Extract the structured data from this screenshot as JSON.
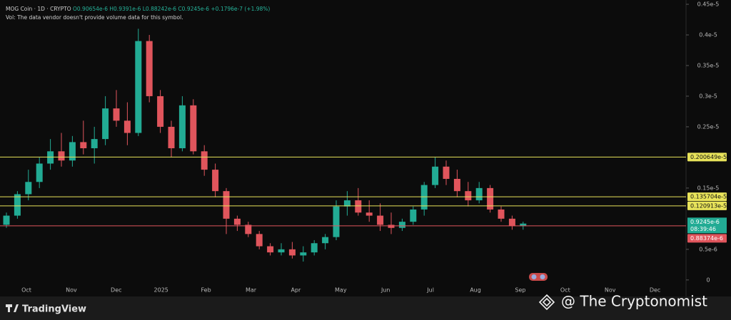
{
  "chart_data": {
    "type": "candlestick",
    "symbol": "MOG Coin · 1D · CRYPTO",
    "ohlc_text": "O0.90654e-6 H0.9391e-6 L0.88242e-6 C0.9245e-6 +0.1796e-7 (+1.98%)",
    "volume_note": "Vol: The data vendor doesn't provide volume data for this symbol.",
    "months": [
      "Oct",
      "Nov",
      "Dec",
      "2025",
      "Feb",
      "Mar",
      "Apr",
      "May",
      "Jun",
      "Jul",
      "Aug",
      "Sep",
      "Oct",
      "Nov",
      "Dec"
    ],
    "open": [
      9e-07,
      1.05e-06,
      1.4e-06,
      1.6e-06,
      1.9e-06,
      2.1e-06,
      1.95e-06,
      2.25e-06,
      2.15e-06,
      2.3e-06,
      2.8e-06,
      2.6e-06,
      2.4e-06,
      3.9e-06,
      3e-06,
      2.5e-06,
      2.15e-06,
      2.85e-06,
      2.1e-06,
      1.8e-06,
      1.45e-06,
      1e-06,
      9e-07,
      7.5e-07,
      5.5e-07,
      4.5e-07,
      5e-07,
      4e-07,
      4.5e-07,
      6e-07,
      7e-07,
      1.2e-06,
      1.3e-06,
      1.1e-06,
      1.05e-06,
      9e-07,
      8.5e-07,
      9.5e-07,
      1.15e-06,
      1.55e-06,
      1.85e-06,
      1.65e-06,
      1.45e-06,
      1.3e-06,
      1.5e-06,
      1.15e-06,
      1e-06,
      8.8e-07
    ],
    "high": [
      1.1e-06,
      1.45e-06,
      1.8e-06,
      2e-06,
      2.3e-06,
      2.4e-06,
      2.35e-06,
      2.6e-06,
      2.5e-06,
      3e-06,
      3.1e-06,
      2.9e-06,
      4.1e-06,
      4e-06,
      3.1e-06,
      2.6e-06,
      3e-06,
      2.95e-06,
      2.2e-06,
      1.9e-06,
      1.5e-06,
      1.05e-06,
      9.5e-07,
      8e-07,
      6e-07,
      6e-07,
      6.2e-07,
      5.5e-07,
      6.5e-07,
      7.5e-07,
      1.3e-06,
      1.45e-06,
      1.5e-06,
      1.3e-06,
      1.25e-06,
      1.1e-06,
      1e-06,
      1.2e-06,
      1.6e-06,
      2e-06,
      1.95e-06,
      1.8e-06,
      1.6e-06,
      1.6e-06,
      1.55e-06,
      1.2e-06,
      1.05e-06,
      9.5e-07
    ],
    "low": [
      8.5e-07,
      1e-06,
      1.3e-06,
      1.5e-06,
      1.8e-06,
      1.85e-06,
      1.85e-06,
      2.05e-06,
      1.9e-06,
      2.2e-06,
      2.5e-06,
      2.2e-06,
      2.35e-06,
      2.9e-06,
      2.4e-06,
      2e-06,
      2.1e-06,
      2.05e-06,
      1.7e-06,
      1.35e-06,
      7.5e-07,
      8e-07,
      7e-07,
      5e-07,
      4e-07,
      4e-07,
      3.5e-07,
      3e-07,
      4e-07,
      5e-07,
      6.5e-07,
      1.05e-06,
      1.05e-06,
      9.5e-07,
      8e-07,
      7.5e-07,
      8e-07,
      9e-07,
      1.05e-06,
      1.5e-06,
      1.55e-06,
      1.35e-06,
      1.2e-06,
      1.25e-06,
      1.1e-06,
      9.5e-07,
      8.2e-07,
      8.2e-07
    ],
    "close": [
      1.05e-06,
      1.4e-06,
      1.6e-06,
      1.9e-06,
      2.1e-06,
      1.95e-06,
      2.25e-06,
      2.15e-06,
      2.3e-06,
      2.8e-06,
      2.6e-06,
      2.4e-06,
      3.9e-06,
      3e-06,
      2.5e-06,
      2.15e-06,
      2.85e-06,
      2.1e-06,
      1.8e-06,
      1.45e-06,
      1e-06,
      9e-07,
      7.5e-07,
      5.5e-07,
      4.5e-07,
      5e-07,
      4e-07,
      4.5e-07,
      6e-07,
      7e-07,
      1.2e-06,
      1.3e-06,
      1.1e-06,
      1.05e-06,
      9e-07,
      8.5e-07,
      9.5e-07,
      1.15e-06,
      1.55e-06,
      1.85e-06,
      1.65e-06,
      1.45e-06,
      1.3e-06,
      1.5e-06,
      1.15e-06,
      1e-06,
      8.8e-07,
      9.2e-07
    ],
    "up_color": "#22ab94",
    "down_color": "#e0555c",
    "ylim": [
      -2e-07,
      4.57e-06
    ],
    "yticks": [
      {
        "value": 4.5e-06,
        "label": "0.45e-5"
      },
      {
        "value": 4e-06,
        "label": "0.4e-5"
      },
      {
        "value": 3.5e-06,
        "label": "0.35e-5"
      },
      {
        "value": 3e-06,
        "label": "0.3e-5"
      },
      {
        "value": 2.5e-06,
        "label": "0.25e-5"
      },
      {
        "value": 1.5e-06,
        "label": "0.15e-5"
      },
      {
        "value": 5e-07,
        "label": "0.5e-6"
      },
      0
    ],
    "price_lines": [
      {
        "value": 2.00649e-06,
        "label": "0.200649e-5",
        "color": "#e8e35a"
      },
      {
        "value": 1.35704e-06,
        "label": "0.135704e-5",
        "color": "#e8e35a"
      },
      {
        "value": 1.20913e-06,
        "label": "0.120913e-5",
        "color": "#e8e35a"
      },
      {
        "value": 8.8374e-07,
        "label": "0.88374e-6",
        "color": "#e0555c"
      }
    ],
    "last": {
      "value": 9.245e-07,
      "label": "0.9245e-6",
      "countdown": "08:39:46",
      "color": "#22ab94"
    },
    "brand": "TradingView",
    "watermark": "@ The Cryptonomist"
  }
}
